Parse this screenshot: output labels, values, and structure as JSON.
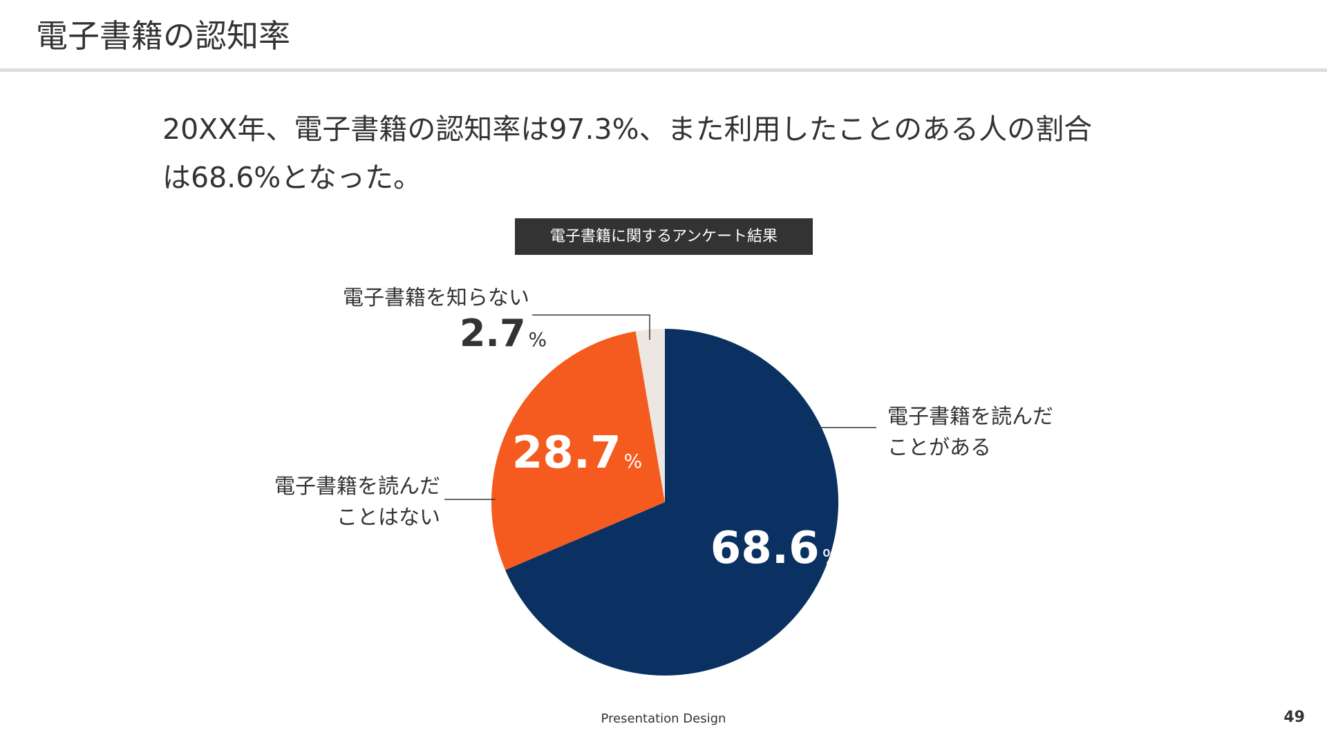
{
  "slide": {
    "title": "電子書籍の認知率",
    "lead_line1": "20XX年、電子書籍の認知率は97.3%、また利用したことのある人の割合",
    "lead_line2": "は68.6%となった。",
    "footer": "Presentation Design",
    "page_number": "49"
  },
  "chart_data": {
    "type": "pie",
    "title": "電子書籍に関するアンケート結果",
    "unit": "%",
    "start": "12 o'clock",
    "direction": "clockwise",
    "slices": [
      {
        "value": 68.6,
        "display": "68.6",
        "label_lines": [
          "電子書籍を読んだ",
          "ことがある"
        ],
        "color": "#0a3161",
        "value_color": "#ffffff"
      },
      {
        "value": 28.7,
        "display": "28.7",
        "label_lines": [
          "電子書籍を読んだ",
          "ことはない"
        ],
        "color": "#f55a1e",
        "value_color": "#ffffff"
      },
      {
        "value": 2.7,
        "display": "2.7",
        "label_lines": [
          "電子書籍を知らない"
        ],
        "color": "#ede7e2",
        "value_color": "#333333"
      }
    ]
  }
}
